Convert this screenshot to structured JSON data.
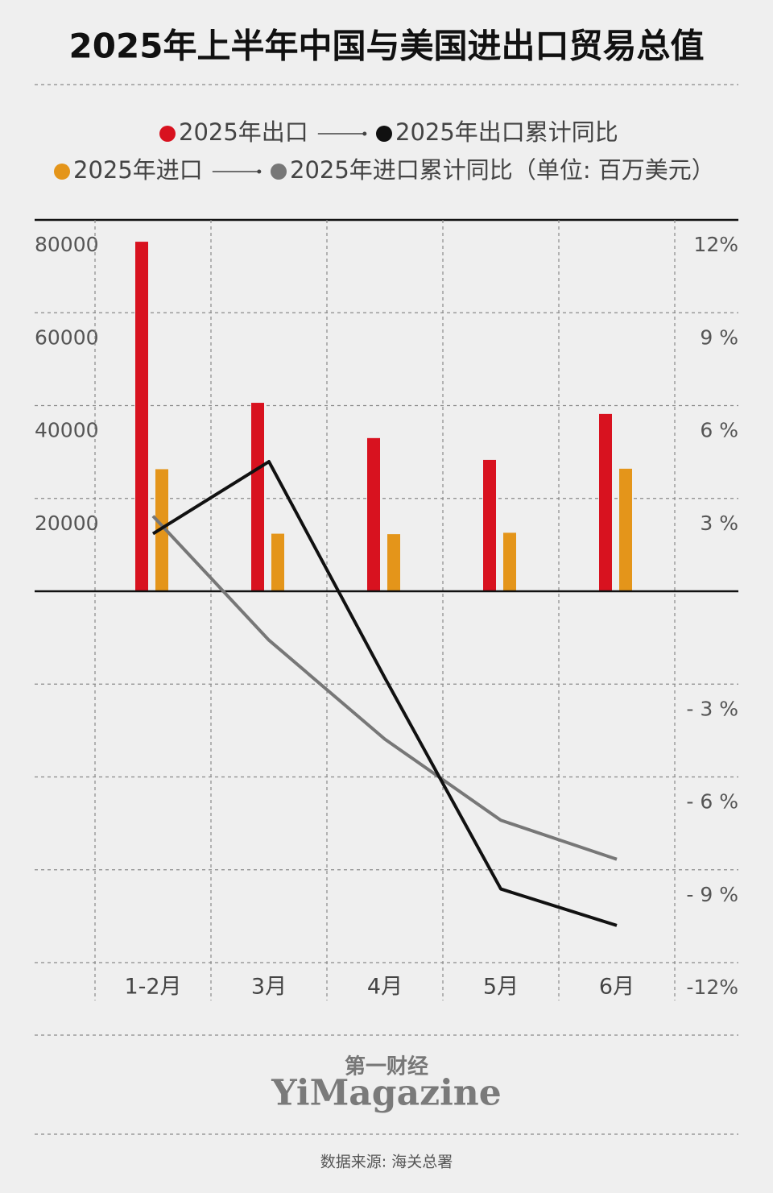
{
  "chart_data": {
    "type": "bar-line",
    "title": "2025年上半年中国与美国进出口贸易总值",
    "unit": "（单位: 百万美元）",
    "categories": [
      "1-2月",
      "3月",
      "4月",
      "5月",
      "6月"
    ],
    "series": [
      {
        "name": "2025年出口",
        "type": "bar",
        "color": "#d8121f",
        "values": [
          75300,
          40600,
          33000,
          28300,
          38200
        ]
      },
      {
        "name": "2025年出口累计同比",
        "type": "line",
        "axis": "y2",
        "color": "#111111",
        "values": [
          1.86,
          4.19,
          -2.8,
          -9.62,
          -10.8
        ]
      },
      {
        "name": "2025年进口",
        "type": "bar",
        "color": "#e4951a",
        "values": [
          26300,
          12400,
          12300,
          12600,
          26400
        ]
      },
      {
        "name": "2025年进口累计同比",
        "type": "line",
        "axis": "y2",
        "color": "#777777",
        "values": [
          2.43,
          -1.58,
          -4.78,
          -7.4,
          -8.66
        ]
      }
    ],
    "ylim": [
      -80000,
      80000
    ],
    "yticks": [
      20000,
      40000,
      60000,
      80000
    ],
    "y2lim": [
      -12,
      12
    ],
    "y2ticks": [
      {
        "value": 12,
        "label": "12%"
      },
      {
        "value": 9,
        "label": "9 %"
      },
      {
        "value": 6,
        "label": "6 %"
      },
      {
        "value": 3,
        "label": "3 %"
      },
      {
        "value": -3,
        "label": "- 3 %"
      },
      {
        "value": -6,
        "label": "- 6 %"
      },
      {
        "value": -9,
        "label": "- 9 %"
      },
      {
        "value": -12,
        "label": "-12%"
      }
    ],
    "grid": true
  },
  "footer": {
    "brand_cn": "第一财经",
    "brand_en": "YiMagazine",
    "source": "数据来源: 海关总署"
  }
}
